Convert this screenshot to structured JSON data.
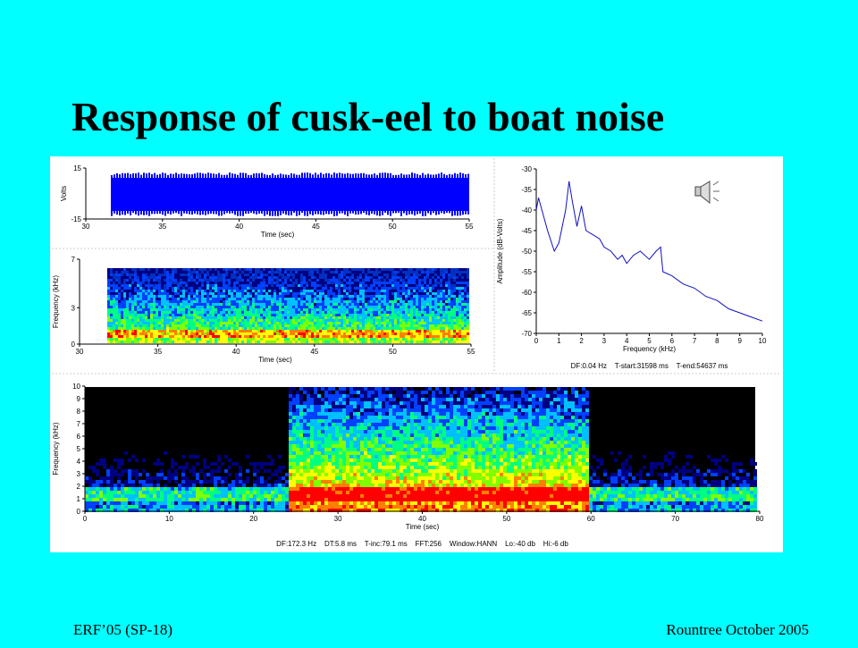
{
  "title": "Response of cusk-eel to boat noise",
  "footer_left": "ERF’05 (SP-18)",
  "footer_right": "Rountree October 2005",
  "waveform": {
    "ylabel": "Volts",
    "xlabel": "Time (sec)",
    "xlim": [
      30,
      55
    ],
    "xticks": [
      30,
      35,
      40,
      45,
      50,
      55
    ],
    "ylim": [
      -15,
      15
    ],
    "yticks": [
      -15,
      15
    ]
  },
  "spectrogram_small": {
    "ylabel": "Frequency (kHz)",
    "xlabel": "Time (sec)",
    "xlim": [
      30,
      55
    ],
    "xticks": [
      30,
      35,
      40,
      45,
      50,
      55
    ],
    "ylim": [
      0,
      7
    ],
    "yticks": [
      0,
      3,
      7
    ]
  },
  "spectrum": {
    "type": "line",
    "ylabel": "Amplitude (dB-Volts)",
    "xlabel": "Frequency (kHz)",
    "color": "#1010c0",
    "xlim": [
      0,
      10
    ],
    "xticks": [
      0,
      1,
      2,
      3,
      4,
      5,
      6,
      7,
      8,
      9,
      10
    ],
    "ylim": [
      -70,
      -30
    ],
    "yticks": [
      -30,
      -35,
      -40,
      -45,
      -50,
      -55,
      -60,
      -65,
      -70
    ],
    "x": [
      0,
      0.1,
      0.5,
      0.8,
      1.0,
      1.3,
      1.45,
      1.6,
      1.8,
      2.0,
      2.2,
      2.5,
      2.8,
      3.0,
      3.3,
      3.6,
      3.8,
      4.0,
      4.3,
      4.6,
      5.0,
      5.3,
      5.5,
      5.6,
      6.0,
      6.5,
      7.0,
      7.5,
      8.0,
      8.5,
      9.0,
      9.5,
      10
    ],
    "values": [
      -40,
      -37,
      -45,
      -50,
      -48,
      -40,
      -33,
      -38,
      -44,
      -39,
      -45,
      -46,
      -47,
      -49,
      -50,
      -52,
      -51,
      -53,
      -51,
      -50,
      -52,
      -50,
      -49,
      -55,
      -56,
      -58,
      -59,
      -61,
      -62,
      -64,
      -65,
      -66,
      -67
    ],
    "caption": "DF:0.04 Hz    T-start:31598 ms    T-end:54637 ms"
  },
  "spectrogram_large": {
    "ylabel": "Frequency (kHz)",
    "xlabel": "Time (sec)",
    "xlim": [
      0,
      80
    ],
    "xticks": [
      0,
      10,
      20,
      30,
      40,
      50,
      60,
      70,
      80
    ],
    "ylim": [
      0,
      10
    ],
    "yticks": [
      0,
      1,
      2,
      3,
      4,
      5,
      6,
      7,
      8,
      9,
      10
    ],
    "caption": "DF:172.3 Hz    DT:5.8 ms    T-inc:79.1 ms    FFT:256    Window:HANN    Lo:-40 db    Hi:-6 db"
  }
}
